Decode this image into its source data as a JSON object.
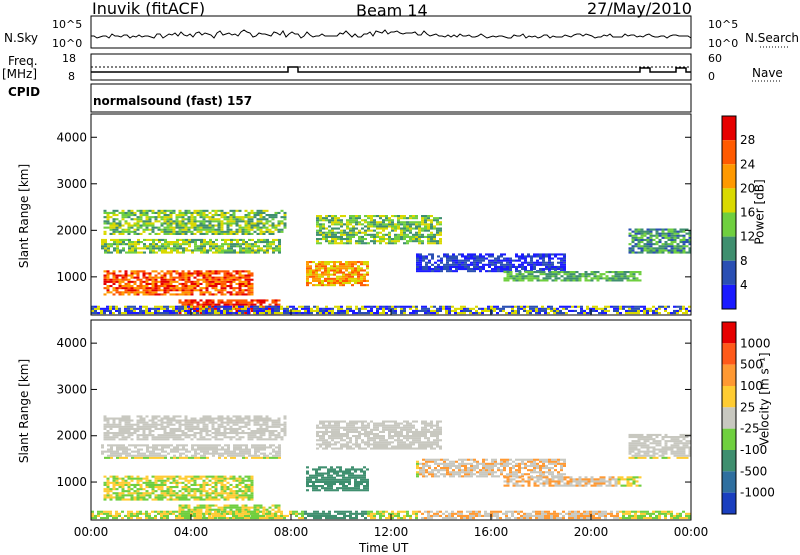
{
  "header": {
    "station": "Inuvik (fitACF)",
    "beam": "Beam 14",
    "date": "27/May/2010"
  },
  "labels": {
    "nsky": "N.Sky",
    "nsearch": "N.Search",
    "freq_line1": "Freq.",
    "freq_line2": "[MHz]",
    "cpid": "CPID",
    "nave": "Nave",
    "cpid_text": "normalsound (fast) 157"
  },
  "sky_ticks": {
    "left": [
      "10^5",
      "10^0"
    ],
    "right": [
      "10^5",
      "10^0"
    ]
  },
  "freq_ticks": {
    "left": [
      "18",
      "8"
    ],
    "right": [
      "60",
      "0"
    ]
  },
  "chart_data": [
    {
      "type": "heatmap",
      "name": "power-panel",
      "ylabel": "Slant Range [km]",
      "yticks": [
        "1000",
        "2000",
        "3000",
        "4000"
      ],
      "ylim": [
        180,
        4500
      ],
      "colorbar": {
        "label": "Power [dB]",
        "ticks": [
          "4",
          "8",
          "12",
          "16",
          "20",
          "24",
          "28"
        ],
        "colors": [
          "#1a1aff",
          "#2a4fb3",
          "#3f8f6f",
          "#6fcf3f",
          "#d9d900",
          "#ff9900",
          "#ff5a00",
          "#e60000"
        ]
      }
    },
    {
      "type": "heatmap",
      "name": "velocity-panel",
      "ylabel": "Slant Range [km]",
      "yticks": [
        "1000",
        "2000",
        "3000",
        "4000"
      ],
      "ylim": [
        180,
        4500
      ],
      "xlabel": "Time UT",
      "xticks": [
        "00:00",
        "04:00",
        "08:00",
        "12:00",
        "16:00",
        "20:00",
        "00:00"
      ],
      "colorbar": {
        "label": "Velocity [m s⁻¹]",
        "ticks": [
          "1000",
          "500",
          "100",
          "25",
          "-25",
          "-100",
          "-500",
          "-1000"
        ],
        "colors": [
          "#1a3fbf",
          "#2f6f9f",
          "#3f8f6f",
          "#6fcf3f",
          "#c8c8c0",
          "#ffcc33",
          "#ff9933",
          "#ff5a1a",
          "#e60000"
        ]
      }
    }
  ]
}
